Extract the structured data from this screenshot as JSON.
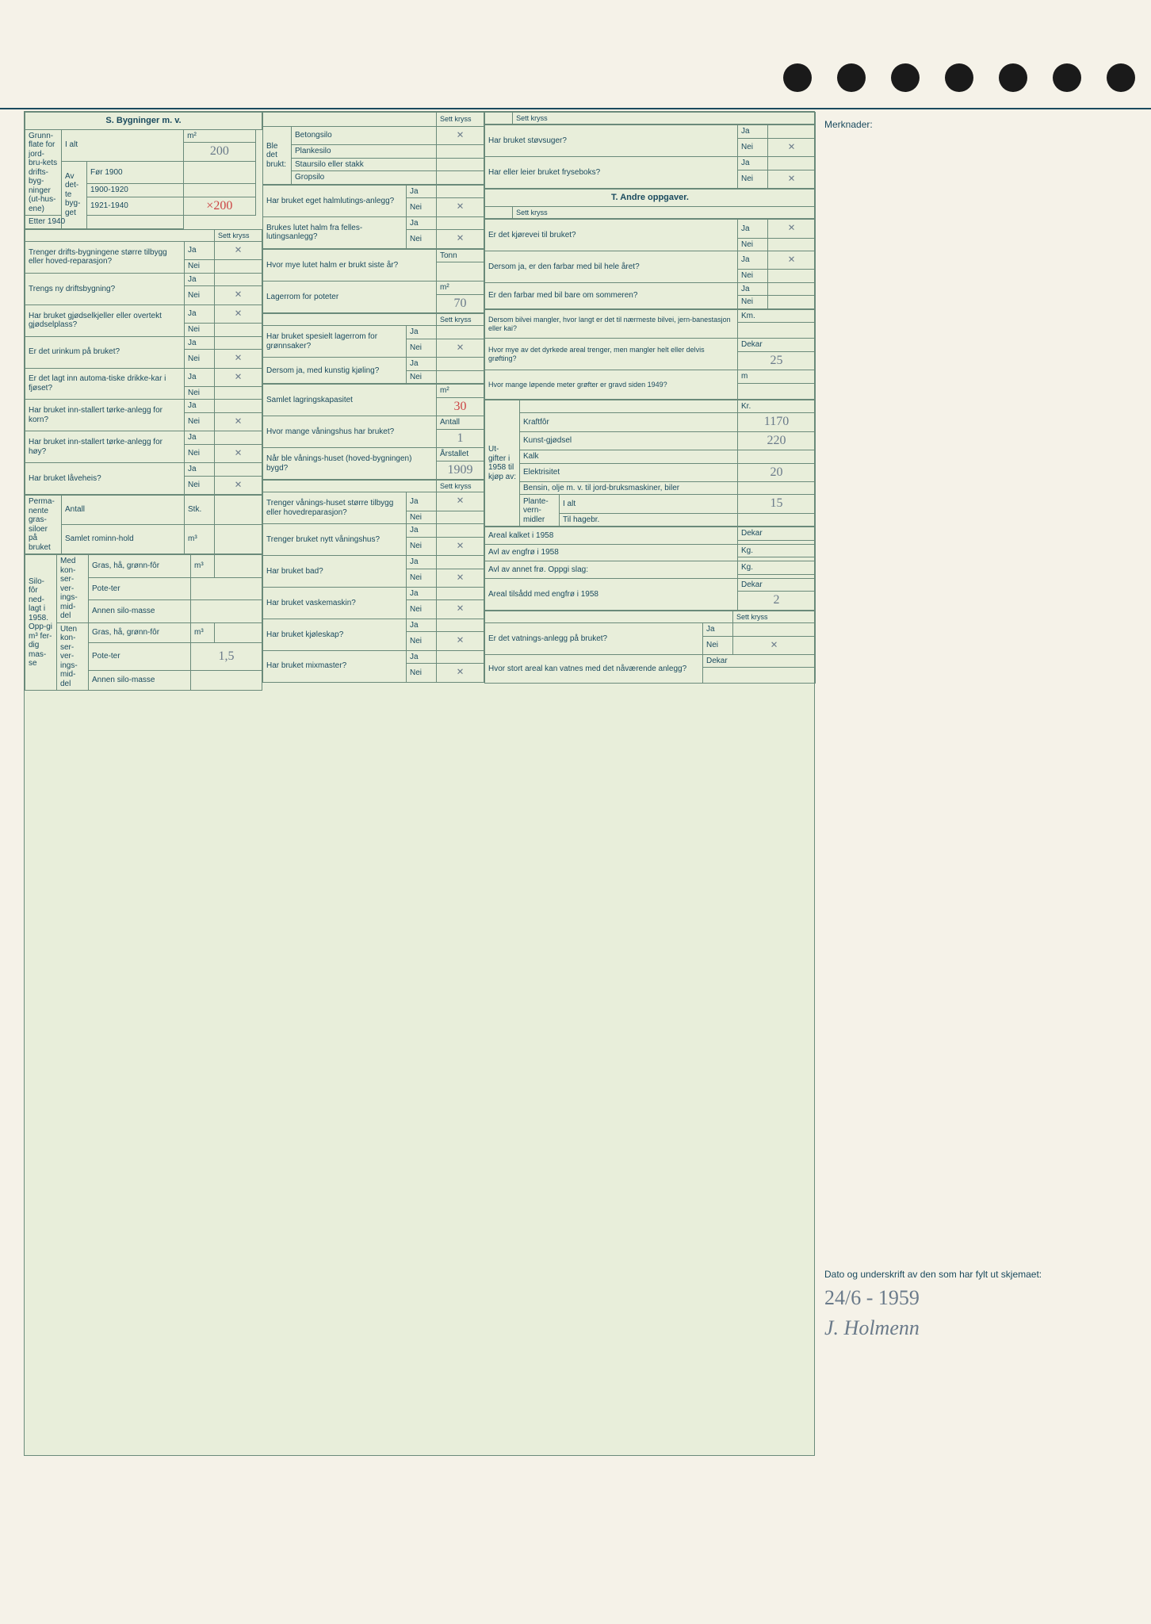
{
  "background_color": "#f5f2e8",
  "form_background": "#e8eeda",
  "border_color": "#6a8a7a",
  "text_color": "#1a4a5e",
  "handwriting_color": "#6a7a8a",
  "handwriting_red": "#c44",
  "section_s": "S. Bygninger m. v.",
  "section_t": "T. Andre oppgaver.",
  "merknader": "Merknader:",
  "sett_kryss": "Sett kryss",
  "ja": "Ja",
  "nei": "Nei",
  "grunnflate": {
    "label": "Grunn-flate for jord-bru-kets drifts-byg-ninger (ut-hus-ene)",
    "ialt": "I alt",
    "unit": "m²",
    "ialt_val": "200",
    "avdette": "Av det-te byg-get",
    "periods": [
      "Før 1900",
      "1900-1920",
      "1921-1940",
      "Etter 1940"
    ],
    "p_1921_val": "×200"
  },
  "col1_q": [
    {
      "t": "Trenger drifts-bygningene større tilbygg eller hoved-reparasjon?",
      "ja": "×",
      "nei": ""
    },
    {
      "t": "Trengs ny driftsbygning?",
      "ja": "",
      "nei": "×"
    },
    {
      "t": "Har bruket gjødselkjeller eller overtekt gjødselplass?",
      "ja": "×",
      "nei": ""
    },
    {
      "t": "Er det urinkum på bruket?",
      "ja": "",
      "nei": "×"
    },
    {
      "t": "Er det lagt inn automa-tiske drikke-kar i fjøset?",
      "ja": "×",
      "nei": ""
    },
    {
      "t": "Har bruket inn-stallert tørke-anlegg for korn?",
      "ja": "",
      "nei": "×"
    },
    {
      "t": "Har bruket inn-stallert tørke-anlegg for høy?",
      "ja": "",
      "nei": "×"
    },
    {
      "t": "Har bruket låveheis?",
      "ja": "",
      "nei": "×"
    }
  ],
  "siloer": {
    "label": "Perma-nente gras-siloer på bruket",
    "antall": "Antall",
    "antall_unit": "Stk.",
    "samlet": "Samlet rominn-hold",
    "samlet_unit": "m³"
  },
  "silofor": {
    "label": "Silo-fôr ned-lagt i 1958. Opp-gi m³ fer-dig mas-se",
    "med": "Med kon-ser-ver-ings-mid-del",
    "uten": "Uten kon-ser-ver-ings-mid-del",
    "rows": [
      "Gras, hå, grønn-fôr",
      "Pote-ter",
      "Annen silo-masse"
    ],
    "unit": "m³",
    "uten_poteter": "1,5"
  },
  "ble_brukt": {
    "label": "Ble det brukt:",
    "items": [
      "Betongsilo",
      "Plankesilo",
      "Staursilo eller stakk",
      "Gropsilo"
    ],
    "betong_x": "×"
  },
  "col2_q": [
    {
      "t": "Har bruket eget halmlutings-anlegg?",
      "ja": "",
      "nei": "×"
    },
    {
      "t": "Brukes lutet halm fra felles-lutingsanlegg?",
      "ja": "",
      "nei": "×"
    }
  ],
  "lutet_halm": {
    "t": "Hvor mye lutet halm er brukt siste år?",
    "unit": "Tonn",
    "val": ""
  },
  "lagerrom_pot": {
    "t": "Lagerrom for poteter",
    "unit": "m²",
    "val": "70"
  },
  "lagerrom_gron": {
    "t": "Har bruket spesielt lagerrom for grønnsaker?",
    "ja": "",
    "nei": "×"
  },
  "kunstig_kjol": {
    "t": "Dersom ja, med kunstig kjøling?",
    "ja": "",
    "nei": ""
  },
  "lagringskaps": {
    "t": "Samlet lagringskapasitet",
    "unit": "m²",
    "val": "30"
  },
  "vaningshus_ant": {
    "t": "Hvor mange våningshus har bruket?",
    "unit": "Antall",
    "val": "1"
  },
  "vaningshus_ar": {
    "t": "Når ble vånings-huset (hoved-bygningen) bygd?",
    "unit": "Årstallet",
    "val": "1909"
  },
  "col2_q2": [
    {
      "t": "Trenger vånings-huset større tilbygg eller hovedreparasjon?",
      "ja": "×",
      "nei": ""
    },
    {
      "t": "Trenger bruket nytt våningshus?",
      "ja": "",
      "nei": "×"
    },
    {
      "t": "Har bruket bad?",
      "ja": "",
      "nei": "×"
    },
    {
      "t": "Har bruket vaskemaskin?",
      "ja": "",
      "nei": "×"
    },
    {
      "t": "Har bruket kjøleskap?",
      "ja": "",
      "nei": "×"
    },
    {
      "t": "Har bruket mixmaster?",
      "ja": "",
      "nei": "×"
    }
  ],
  "col3_top": [
    {
      "t": "Har bruket støvsuger?",
      "ja": "",
      "nei": "×"
    },
    {
      "t": "Har eller leier bruket fryseboks?",
      "ja": "",
      "nei": "×"
    }
  ],
  "t_q": [
    {
      "t": "Er det kjørevei til bruket?",
      "ja": "×",
      "nei": ""
    },
    {
      "t": "Dersom ja, er den farbar med bil hele året?",
      "ja": "×",
      "nei": ""
    },
    {
      "t": "Er den farbar med bil bare om sommeren?",
      "ja": "",
      "nei": ""
    }
  ],
  "bilvei": {
    "t": "Dersom bilvei mangler, hvor langt er det til nærmeste bilvei, jern-banestasjon eller kai?",
    "unit": "Km.",
    "val": ""
  },
  "grofting": {
    "t": "Hvor mye av det dyrkede areal trenger, men mangler helt eller delvis grøfting?",
    "unit": "Dekar",
    "val": "25"
  },
  "grofter": {
    "t": "Hvor mange løpende meter grøfter er gravd siden 1949?",
    "unit": "m",
    "val": ""
  },
  "utgifter": {
    "label": "Ut-gifter i 1958 til kjøp av:",
    "unit": "Kr.",
    "rows": [
      {
        "t": "Kraftfôr",
        "val": "1170"
      },
      {
        "t": "Kunst-gjødsel",
        "val": "220"
      },
      {
        "t": "Kalk",
        "val": ""
      },
      {
        "t": "Elektrisitet",
        "val": "20"
      },
      {
        "t": "Bensin, olje m. v. til jord-bruksmaskiner, biler",
        "val": ""
      }
    ],
    "plantevernmidler": "Plante-vern-midler",
    "ialt": "I alt",
    "ialt_val": "15",
    "tilhagebr": "Til hagebr."
  },
  "col3_bot": [
    {
      "t": "Areal kalket i 1958",
      "unit": "Dekar",
      "val": ""
    },
    {
      "t": "Avl av engfrø i 1958",
      "unit": "Kg.",
      "val": ""
    },
    {
      "t": "Avl av annet frø. Oppgi slag:",
      "unit": "Kg.",
      "val": ""
    },
    {
      "t": "Areal tilsådd med engfrø i 1958",
      "unit": "Dekar",
      "val": "2"
    }
  ],
  "vatning": {
    "t": "Er det vatnings-anlegg på bruket?",
    "ja": "",
    "nei": "×"
  },
  "vatn_areal": {
    "t": "Hvor stort areal kan vatnes med det nåværende anlegg?",
    "unit": "Dekar",
    "val": ""
  },
  "signatur": {
    "label": "Dato og underskrift av den som har fylt ut skjemaet:",
    "dato": "24/6 - 1959",
    "navn": "J. Holmenn"
  }
}
